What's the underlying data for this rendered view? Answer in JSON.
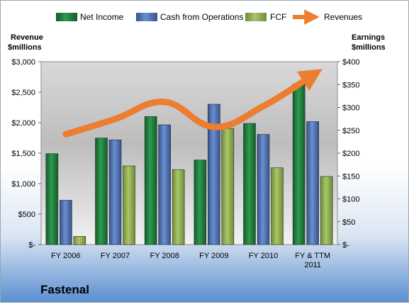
{
  "chart_data": {
    "type": "bar",
    "company": "Fastenal",
    "categories": [
      "FY 2006",
      "FY 2007",
      "FY 2008",
      "FY 2009",
      "FY 2010",
      "FY & TTM 2011"
    ],
    "series": [
      {
        "name": "Net Income",
        "axis": "right",
        "values": [
          199,
          233,
          280,
          185,
          265,
          351
        ],
        "color": "#1f7a3a"
      },
      {
        "name": "Cash from Operations",
        "axis": "right",
        "values": [
          97,
          229,
          262,
          307,
          241,
          269
        ],
        "color": "#4a6fb5"
      },
      {
        "name": "FCF",
        "axis": "right",
        "values": [
          18,
          172,
          164,
          254,
          168,
          149
        ],
        "color": "#8fae4e"
      }
    ],
    "line_series": {
      "name": "Revenues",
      "axis": "left",
      "values": [
        1810,
        2060,
        2340,
        1930,
        2270,
        2780
      ],
      "color": "#ec7d31"
    },
    "left_axis": {
      "title_line1": "Revenue",
      "title_line2": "$millions",
      "ylim": [
        0,
        3000
      ],
      "tick_labels": [
        "$-",
        "$500",
        "$1,000",
        "$1,500",
        "$2,000",
        "$2,500",
        "$3,000"
      ]
    },
    "right_axis": {
      "title_line1": "Earnings",
      "title_line2": "$millions",
      "ylim": [
        0,
        400
      ],
      "tick_labels": [
        "$-",
        "$50",
        "$100",
        "$150",
        "$200",
        "$250",
        "$300",
        "$350",
        "$400"
      ]
    },
    "legend_position": "top",
    "grid": false
  }
}
